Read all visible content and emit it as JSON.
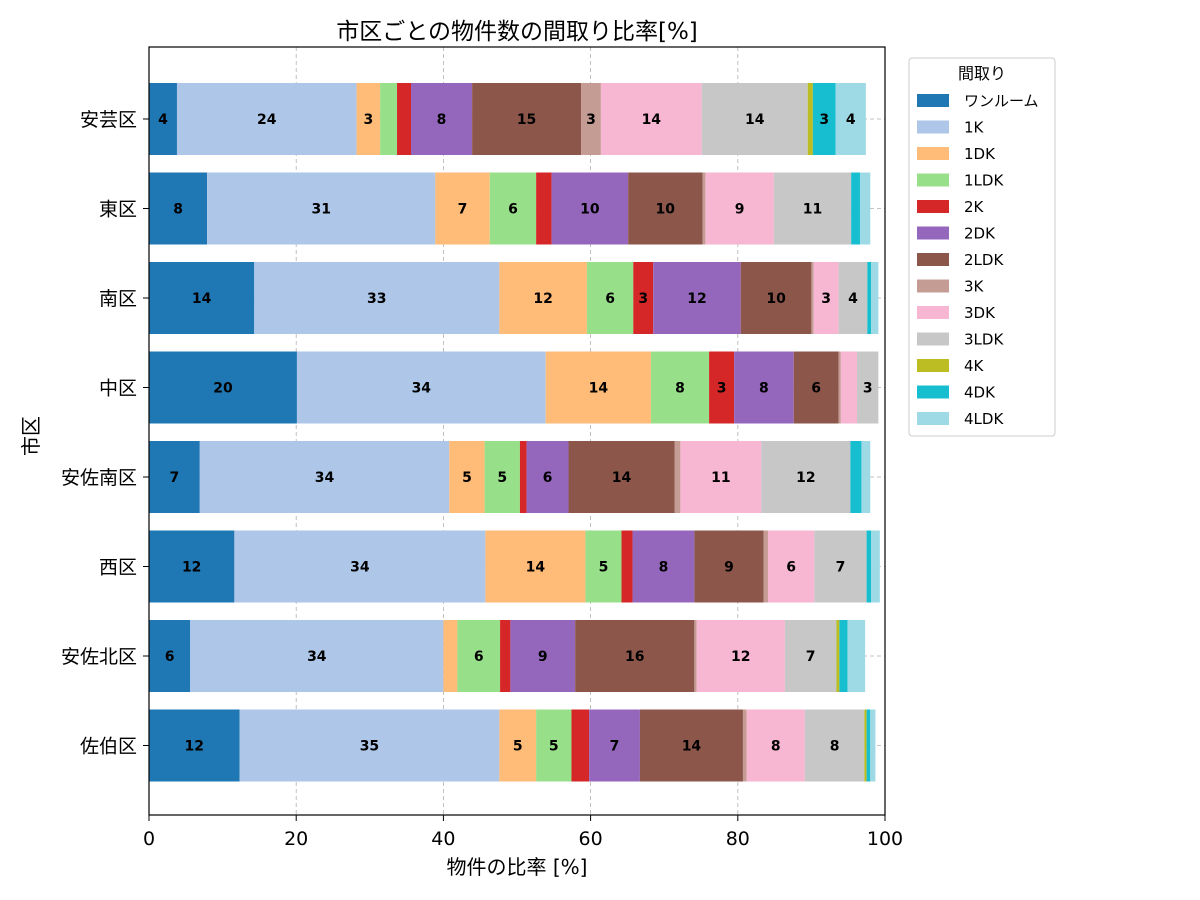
{
  "chart_data": {
    "type": "bar",
    "orientation": "horizontal",
    "stacked": true,
    "title": "市区ごとの物件数の間取り比率[%]",
    "xlabel": "物件の比率 [%]",
    "ylabel": "市区",
    "xlim": [
      0,
      100
    ],
    "x_ticks": [
      "0",
      "20",
      "40",
      "60",
      "80",
      "100"
    ],
    "grid": true,
    "legend_title": "間取り",
    "legend_position": "outside-top-right",
    "categories": [
      "安芸区",
      "東区",
      "南区",
      "中区",
      "安佐南区",
      "西区",
      "安佐北区",
      "佐伯区"
    ],
    "series": [
      {
        "name": "ワンルーム",
        "color": "#1f77b4",
        "values": [
          3.8,
          7.9,
          14.3,
          20.1,
          6.9,
          11.6,
          5.6,
          12.3
        ]
      },
      {
        "name": "1K",
        "color": "#aec7e8",
        "values": [
          24.4,
          31.0,
          33.3,
          33.8,
          33.9,
          34.1,
          34.4,
          35.3
        ]
      },
      {
        "name": "1DK",
        "color": "#ffbb78",
        "values": [
          3.2,
          7.4,
          11.9,
          14.3,
          4.8,
          13.6,
          1.9,
          5.0
        ]
      },
      {
        "name": "1LDK",
        "color": "#98df8a",
        "values": [
          2.3,
          6.3,
          6.3,
          7.9,
          4.8,
          4.9,
          5.8,
          4.8
        ]
      },
      {
        "name": "2K",
        "color": "#d62728",
        "values": [
          1.9,
          2.1,
          2.7,
          3.4,
          0.9,
          1.5,
          1.4,
          2.4
        ]
      },
      {
        "name": "2DK",
        "color": "#9467bd",
        "values": [
          8.3,
          10.4,
          11.9,
          8.1,
          5.7,
          8.4,
          8.8,
          6.9
        ]
      },
      {
        "name": "2LDK",
        "color": "#8c564b",
        "values": [
          14.8,
          10.1,
          9.6,
          6.1,
          14.4,
          9.4,
          16.2,
          14.0
        ]
      },
      {
        "name": "3K",
        "color": "#c49c94",
        "values": [
          2.7,
          0.4,
          0.3,
          0.3,
          0.8,
          0.6,
          0.3,
          0.5
        ]
      },
      {
        "name": "3DK",
        "color": "#f7b6d2",
        "values": [
          13.7,
          9.3,
          3.4,
          2.2,
          11.0,
          6.3,
          12.0,
          7.9
        ]
      },
      {
        "name": "3LDK",
        "color": "#c7c7c7",
        "values": [
          14.4,
          10.5,
          3.9,
          2.9,
          12.1,
          7.1,
          7.0,
          8.1
        ]
      },
      {
        "name": "4K",
        "color": "#bcbd22",
        "values": [
          0.7,
          0.0,
          0.0,
          0.0,
          0.0,
          0.0,
          0.4,
          0.3
        ]
      },
      {
        "name": "4DK",
        "color": "#17becf",
        "values": [
          3.1,
          1.2,
          0.5,
          0.0,
          1.5,
          0.6,
          1.1,
          0.5
        ]
      },
      {
        "name": "4LDK",
        "color": "#9edae5",
        "values": [
          4.1,
          1.4,
          1.0,
          0.0,
          1.2,
          1.2,
          2.4,
          0.7
        ]
      }
    ]
  }
}
